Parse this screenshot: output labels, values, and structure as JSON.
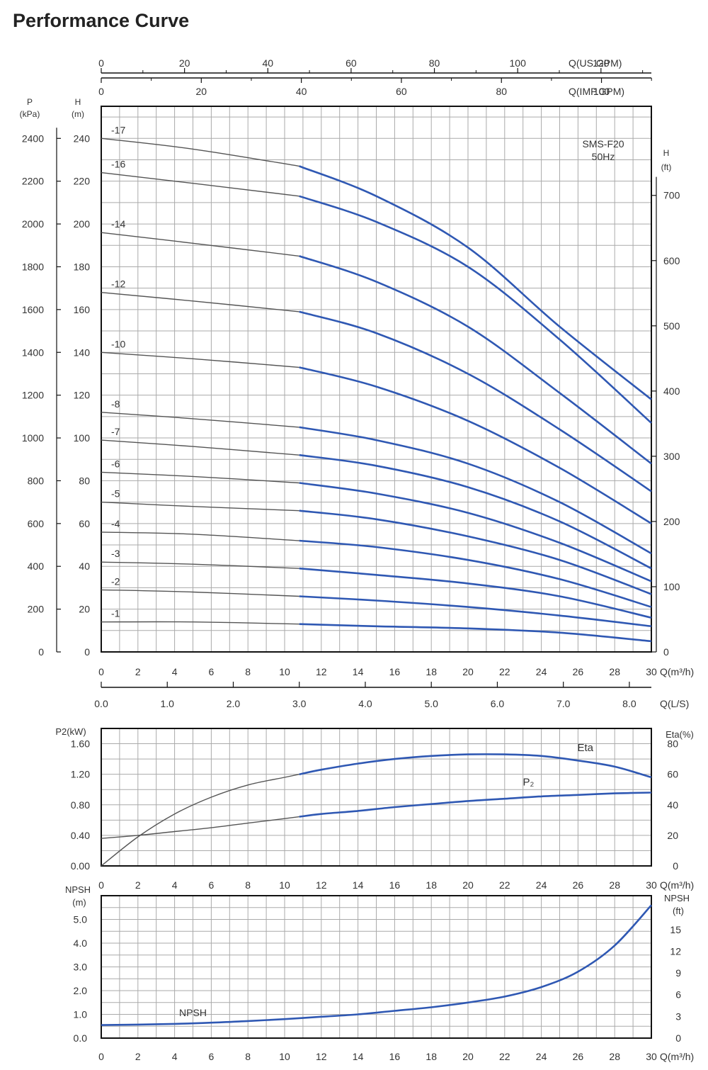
{
  "title": "Performance Curve",
  "colors": {
    "curve_dark": "#555555",
    "curve_blue": "#2f58b3",
    "grid": "#aaaaaa",
    "frame": "#111111"
  },
  "chart_data": [
    {
      "id": "head",
      "type": "line",
      "annotation": [
        "SMS-F20",
        "50Hz"
      ],
      "xlabel": "Q(m³/h)",
      "xlim": [
        0,
        30
      ],
      "xticks": [
        "0",
        "2",
        "4",
        "6",
        "8",
        "10",
        "12",
        "14",
        "16",
        "18",
        "20",
        "22",
        "24",
        "26",
        "28",
        "30"
      ],
      "ylabel_left_outer": [
        "P",
        "(kPa)"
      ],
      "ylabel_left": [
        "H",
        "(m)"
      ],
      "ylabel_right": [
        "H",
        "(ft)"
      ],
      "ylim": [
        0,
        255
      ],
      "yticks": [
        "0",
        "20",
        "40",
        "60",
        "80",
        "100",
        "120",
        "140",
        "160",
        "180",
        "200",
        "220",
        "240"
      ],
      "yticks_kpa": [
        "0",
        "200",
        "400",
        "600",
        "800",
        "1000",
        "1200",
        "1400",
        "1600",
        "1800",
        "2000",
        "2200",
        "2400"
      ],
      "yticks_ft": [
        "0",
        "100",
        "200",
        "300",
        "400",
        "500",
        "600",
        "700"
      ],
      "top_axis_usgpm": {
        "label": "Q(US.GPM)",
        "ticks": [
          "0",
          "20",
          "40",
          "60",
          "80",
          "100",
          "120"
        ]
      },
      "top_axis_impgpm": {
        "label": "Q(IMP.GPM)",
        "ticks": [
          "0",
          "20",
          "40",
          "60",
          "80",
          "100"
        ]
      },
      "bottom_axis_ls": {
        "label": "Q(L/S)",
        "ticks": [
          "0.0",
          "1.0",
          "2.0",
          "3.0",
          "4.0",
          "5.0",
          "6.0",
          "7.0",
          "8.0"
        ]
      },
      "operating_range_start": 10.8,
      "series": [
        {
          "name": "-17",
          "x": [
            0,
            5,
            10.8,
            15,
            20,
            25,
            30
          ],
          "y": [
            240,
            235,
            227,
            213,
            189,
            152,
            118
          ]
        },
        {
          "name": "-16",
          "x": [
            0,
            5,
            10.8,
            15,
            20,
            25,
            30
          ],
          "y": [
            224,
            219,
            213,
            201,
            180,
            146,
            107
          ]
        },
        {
          "name": "-14",
          "x": [
            0,
            5,
            10.8,
            15,
            20,
            25,
            30
          ],
          "y": [
            196,
            191,
            185,
            173,
            152,
            121,
            88
          ]
        },
        {
          "name": "-12",
          "x": [
            0,
            5,
            10.8,
            15,
            20,
            25,
            30
          ],
          "y": [
            168,
            164,
            159,
            149,
            130,
            104,
            75
          ]
        },
        {
          "name": "-10",
          "x": [
            0,
            5,
            10.8,
            15,
            20,
            25,
            30
          ],
          "y": [
            140,
            137,
            133,
            124,
            108,
            86,
            60
          ]
        },
        {
          "name": "-8",
          "x": [
            0,
            5,
            10.8,
            15,
            20,
            25,
            30
          ],
          "y": [
            112,
            109,
            105,
            99,
            88,
            70,
            46
          ]
        },
        {
          "name": "-7",
          "x": [
            0,
            5,
            10.8,
            15,
            20,
            25,
            30
          ],
          "y": [
            99,
            96,
            92,
            87,
            77,
            61,
            39
          ]
        },
        {
          "name": "-6",
          "x": [
            0,
            5,
            10.8,
            15,
            20,
            25,
            30
          ],
          "y": [
            84,
            82,
            79,
            74,
            65,
            51,
            33
          ]
        },
        {
          "name": "-5",
          "x": [
            0,
            5,
            10.8,
            15,
            20,
            25,
            30
          ],
          "y": [
            70,
            68,
            66,
            62,
            54,
            43,
            27
          ]
        },
        {
          "name": "-4",
          "x": [
            0,
            5,
            10.8,
            15,
            20,
            25,
            30
          ],
          "y": [
            56,
            55,
            52,
            49,
            43,
            34,
            21
          ]
        },
        {
          "name": "-3",
          "x": [
            0,
            5,
            10.8,
            15,
            20,
            25,
            30
          ],
          "y": [
            42,
            41,
            39,
            36,
            32,
            26,
            16
          ]
        },
        {
          "name": "-2",
          "x": [
            0,
            5,
            10.8,
            15,
            20,
            25,
            30
          ],
          "y": [
            29,
            28,
            26,
            24,
            21,
            17,
            12
          ]
        },
        {
          "name": "-1",
          "x": [
            0,
            5,
            10.8,
            15,
            20,
            25,
            30
          ],
          "y": [
            14,
            14,
            13,
            12,
            11,
            9,
            5
          ]
        }
      ]
    },
    {
      "id": "power_efficiency",
      "type": "line",
      "xlabel": "Q(m³/h)",
      "xlim": [
        0,
        30
      ],
      "xticks": [
        "0",
        "2",
        "4",
        "6",
        "8",
        "10",
        "12",
        "14",
        "16",
        "18",
        "20",
        "22",
        "24",
        "26",
        "28",
        "30"
      ],
      "ylabel_left": "P2(kW)",
      "ylim_left": [
        0,
        1.8
      ],
      "yticks_left": [
        "0.00",
        "0.40",
        "0.80",
        "1.20",
        "1.60"
      ],
      "ylabel_right": "Eta(%)",
      "ylim_right": [
        0,
        90
      ],
      "yticks_right": [
        "0",
        "20",
        "40",
        "60",
        "80"
      ],
      "series": [
        {
          "name": "Eta",
          "axis": "right",
          "x": [
            0,
            2,
            4,
            6,
            8,
            10,
            12,
            14,
            16,
            18,
            20,
            22,
            24,
            26,
            28,
            30
          ],
          "y": [
            0,
            19,
            34,
            45,
            53,
            58,
            63,
            67,
            70,
            72,
            73,
            73,
            72,
            69,
            65,
            58
          ]
        },
        {
          "name": "P₂",
          "axis": "left",
          "x": [
            0,
            2,
            4,
            6,
            8,
            10,
            12,
            14,
            16,
            18,
            20,
            22,
            24,
            26,
            28,
            30
          ],
          "y": [
            0.36,
            0.4,
            0.45,
            0.5,
            0.56,
            0.62,
            0.68,
            0.72,
            0.77,
            0.81,
            0.85,
            0.88,
            0.91,
            0.93,
            0.95,
            0.96
          ]
        }
      ]
    },
    {
      "id": "npsh",
      "type": "line",
      "xlabel": "Q(m³/h)",
      "xlim": [
        0,
        30
      ],
      "xticks": [
        "0",
        "2",
        "4",
        "6",
        "8",
        "10",
        "12",
        "14",
        "16",
        "18",
        "20",
        "22",
        "24",
        "26",
        "28",
        "30"
      ],
      "ylabel_left": [
        "NPSH",
        "(m)"
      ],
      "ylim_left": [
        0,
        6
      ],
      "yticks_left": [
        "0.0",
        "1.0",
        "2.0",
        "3.0",
        "4.0",
        "5.0"
      ],
      "ylabel_right": [
        "NPSH",
        "(ft)"
      ],
      "yticks_right": [
        "0",
        "3",
        "6",
        "9",
        "12",
        "15"
      ],
      "series": [
        {
          "name": "NPSH",
          "x": [
            0,
            2,
            4,
            6,
            8,
            10,
            12,
            14,
            16,
            18,
            20,
            22,
            24,
            26,
            28,
            30
          ],
          "y": [
            0.55,
            0.57,
            0.6,
            0.65,
            0.72,
            0.8,
            0.9,
            1.0,
            1.15,
            1.3,
            1.5,
            1.75,
            2.15,
            2.8,
            3.9,
            5.6
          ]
        }
      ]
    }
  ]
}
